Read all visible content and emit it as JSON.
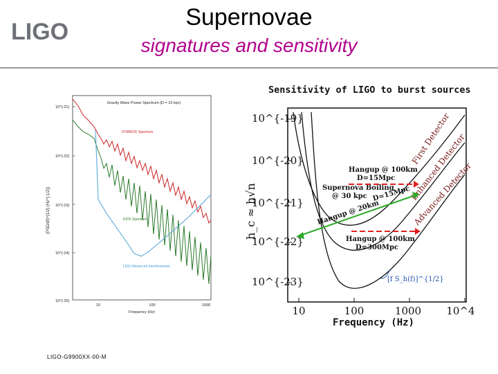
{
  "header": {
    "title": "Supernovae",
    "subtitle": "signatures and sensitivity",
    "logo_text": "LIGO"
  },
  "footer": {
    "doc_id": "LIGO-G9900XX-00-M"
  },
  "colors": {
    "subtitle": "#b0008c",
    "red_curve": "#cc2222",
    "green_curve": "#2a7a2a",
    "blue_curve": "#4aa0d8",
    "green_arrow": "#2faa2a",
    "red_arrow": "#e02020",
    "detector_label": "#7a1a1a"
  },
  "left_plot": {
    "title": "Gravity Wave Power Spectrum (D = 10 kpc)",
    "ylabel": "(PSD/df)^{1/2}  (Hz^{-1/2})",
    "xlabel": "Frequency (Hz)",
    "y_ticks": [
      "10^{-21}",
      "10^{-22}",
      "10^{-23}",
      "10^{-24}",
      "10^{-25}"
    ],
    "x_ticks": [
      "10",
      "100",
      "1000"
    ],
    "label_symkick": "SYMKICK Spectrum",
    "label_kick": "KICK Spectrum",
    "label_ligo": "LIGO Advanced Interferometer"
  },
  "right_plot": {
    "title": "Sensitivity of LIGO to burst sources",
    "ylabel": "h_c ≈ h√n",
    "xlabel": "Frequency (Hz)",
    "y_ticks": [
      "10^{-19}",
      "10^{-20}",
      "10^{-21}",
      "10^{-22}",
      "10^{-23}"
    ],
    "x_ticks": [
      "10",
      "100",
      "1000",
      "10^4"
    ],
    "label_first": "First Detector",
    "label_enhanced": "Enhanced Detector",
    "label_advanced": "Advanced Detector",
    "hangup1_a": "Hangup @ 100km",
    "hangup1_b": "D=15Mpc",
    "supernova_a": "Supernova Boiling",
    "supernova_b": "@ 30 kpc",
    "d15": "D=15Mpc",
    "hangup2": "Hangup @ 20km",
    "hangup3_a": "Hangup @ 100km",
    "hangup3_b": "D=300Mpc",
    "noise_label": "[f S_h(f)]^{1/2}"
  }
}
